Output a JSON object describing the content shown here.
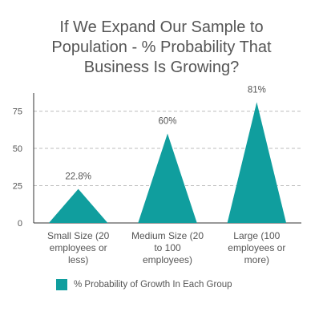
{
  "chart_data": {
    "type": "bar",
    "title_lines": [
      "If We Expand Our Sample to",
      "Population - % Probability That",
      "Business Is Growing?"
    ],
    "categories": [
      [
        "Small Size (20",
        "employees or",
        "less)"
      ],
      [
        "Medium Size (20",
        "to 100",
        "employees)"
      ],
      [
        "Large (100",
        "employees or",
        "more)"
      ]
    ],
    "series": [
      {
        "name": "% Probability of Growth In Each Group",
        "values": [
          22.8,
          60,
          81
        ],
        "data_labels": [
          "22.8%",
          "60%",
          "81%"
        ],
        "color": "#109e9e"
      }
    ],
    "ylim": [
      0,
      85
    ],
    "yticks": [
      0,
      25,
      50,
      75
    ],
    "bar_shape": "triangle",
    "grid": "dashed horizontal",
    "legend_position": "bottom"
  }
}
